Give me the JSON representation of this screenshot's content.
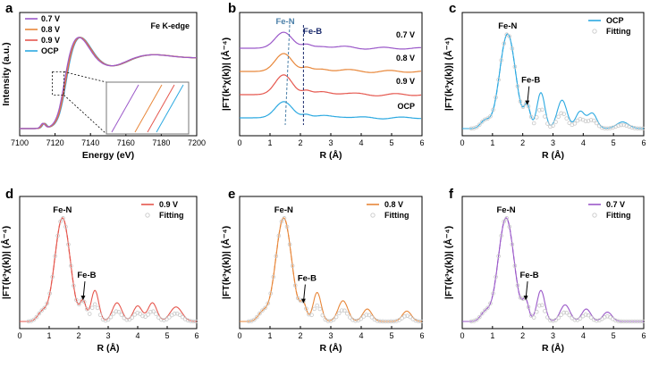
{
  "colors": {
    "v07": "#9b59c9",
    "v08": "#e8873a",
    "v09": "#e5574e",
    "ocp": "#2ca9e1",
    "fitting": "#c9c9c9",
    "feN_label": "#4a7fa8",
    "feB_label": "#1a2a6c"
  },
  "chart_data": [
    {
      "panel": "a",
      "type": "line",
      "title": "Fe K-edge",
      "xlabel": "Energy (eV)",
      "ylabel": "Intensity (a.u.)",
      "xlim": [
        7100,
        7200
      ],
      "xticks": [
        "7100",
        "7120",
        "7140",
        "7160",
        "7180",
        "7200"
      ],
      "legend": [
        "0.7 V",
        "0.8 V",
        "0.9 V",
        "OCP"
      ],
      "series": [
        {
          "name": "0.7 V",
          "color_key": "v07",
          "shift": -0.4
        },
        {
          "name": "0.8 V",
          "color_key": "v08",
          "shift": 0.0
        },
        {
          "name": "0.9 V",
          "color_key": "v09",
          "shift": 0.3
        },
        {
          "name": "OCP",
          "color_key": "ocp",
          "shift": 0.6
        }
      ],
      "inset": "zoom of edge region 7118–7125 eV"
    },
    {
      "panel": "b",
      "type": "line",
      "xlabel": "R (Å)",
      "ylabel": "|FT(k³χ(k))| (Å⁻⁴)",
      "xlim": [
        0,
        6
      ],
      "xticks": [
        "0",
        "1",
        "2",
        "3",
        "4",
        "5",
        "6"
      ],
      "annotations": [
        "Fe-N",
        "Fe-B"
      ],
      "series": [
        {
          "name": "0.7 V",
          "color_key": "v07",
          "offset": 3
        },
        {
          "name": "0.8 V",
          "color_key": "v08",
          "offset": 2
        },
        {
          "name": "0.9 V",
          "color_key": "v09",
          "offset": 1
        },
        {
          "name": "OCP",
          "color_key": "ocp",
          "offset": 0
        }
      ],
      "guide_lines_R": [
        1.5,
        2.1
      ]
    },
    {
      "panel": "c",
      "type": "line",
      "xlabel": "R (Å)",
      "ylabel": "|FT(k³χ(k))| (Å⁻⁴)",
      "xlim": [
        0,
        6
      ],
      "xticks": [
        "0",
        "1",
        "2",
        "3",
        "4",
        "5",
        "6"
      ],
      "legend": [
        "OCP",
        "Fitting"
      ],
      "data_color_key": "ocp",
      "peaks": [
        {
          "R": 1.5,
          "height": 1.0,
          "label": "Fe-N"
        },
        {
          "R": 2.15,
          "height": 0.22,
          "label": "Fe-B"
        },
        {
          "R": 2.6,
          "height": 0.38
        },
        {
          "R": 3.3,
          "height": 0.3
        },
        {
          "R": 3.9,
          "height": 0.18
        },
        {
          "R": 4.3,
          "height": 0.16
        },
        {
          "R": 5.3,
          "height": 0.07
        }
      ]
    },
    {
      "panel": "d",
      "type": "line",
      "xlabel": "R (Å)",
      "ylabel": "|FT(k³χ(k))| (Å⁻⁴)",
      "xlim": [
        0,
        6
      ],
      "xticks": [
        "0",
        "1",
        "2",
        "3",
        "4",
        "5",
        "6"
      ],
      "legend": [
        "0.9 V",
        "Fitting"
      ],
      "data_color_key": "v09",
      "peaks": [
        {
          "R": 1.45,
          "height": 1.0,
          "label": "Fe-N"
        },
        {
          "R": 2.15,
          "height": 0.18,
          "label": "Fe-B"
        },
        {
          "R": 2.55,
          "height": 0.3
        },
        {
          "R": 3.3,
          "height": 0.18
        },
        {
          "R": 4.0,
          "height": 0.15
        },
        {
          "R": 4.5,
          "height": 0.18
        },
        {
          "R": 5.3,
          "height": 0.14
        }
      ]
    },
    {
      "panel": "e",
      "type": "line",
      "xlabel": "R (Å)",
      "ylabel": "|FT(k³χ(k))| (Å⁻⁴)",
      "xlim": [
        0,
        6
      ],
      "xticks": [
        "0",
        "1",
        "2",
        "3",
        "4",
        "5",
        "6"
      ],
      "legend": [
        "0.8 V",
        "Fitting"
      ],
      "data_color_key": "v08",
      "peaks": [
        {
          "R": 1.45,
          "height": 1.0,
          "label": "Fe-N"
        },
        {
          "R": 2.1,
          "height": 0.15,
          "label": "Fe-B"
        },
        {
          "R": 2.55,
          "height": 0.28
        },
        {
          "R": 3.4,
          "height": 0.2
        },
        {
          "R": 4.2,
          "height": 0.12
        },
        {
          "R": 5.5,
          "height": 0.1
        }
      ]
    },
    {
      "panel": "f",
      "type": "line",
      "xlabel": "R (Å)",
      "ylabel": "|FT(k³χ(k))| (Å⁻⁴)",
      "xlim": [
        0,
        6
      ],
      "xticks": [
        "0",
        "1",
        "2",
        "3",
        "4",
        "5",
        "6"
      ],
      "legend": [
        "0.7 V",
        "Fitting"
      ],
      "data_color_key": "v07",
      "peaks": [
        {
          "R": 1.45,
          "height": 1.0,
          "label": "Fe-N"
        },
        {
          "R": 2.1,
          "height": 0.18,
          "label": "Fe-B"
        },
        {
          "R": 2.6,
          "height": 0.3
        },
        {
          "R": 3.4,
          "height": 0.16
        },
        {
          "R": 4.1,
          "height": 0.12
        },
        {
          "R": 4.8,
          "height": 0.09
        }
      ]
    }
  ]
}
